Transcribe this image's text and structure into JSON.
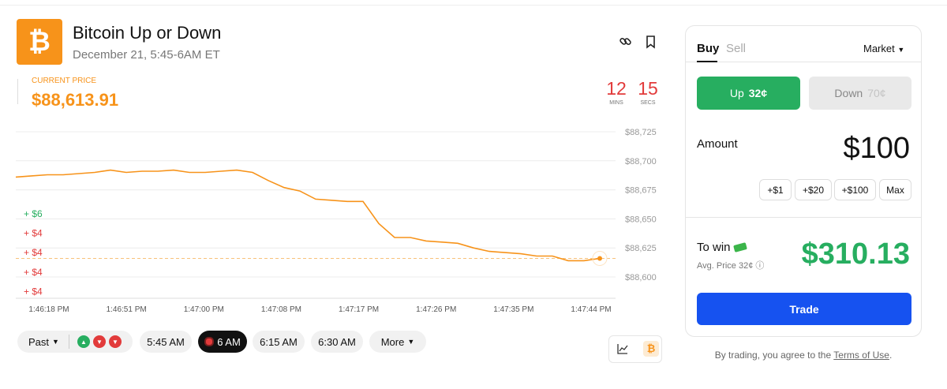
{
  "header": {
    "title": "Bitcoin Up or Down",
    "subtitle": "December 21, 5:45-6AM ET",
    "logo": "₿"
  },
  "price": {
    "label": "CURRENT PRICE",
    "value": "$88,613.91"
  },
  "timer": {
    "minutes": "12",
    "minutes_label": "MINS",
    "seconds": "15",
    "seconds_label": "SECS"
  },
  "chart_data": {
    "type": "line",
    "color": "#f7931a",
    "grid": true,
    "ylim": [
      88600,
      88725
    ],
    "yticks": [
      {
        "value": 88600,
        "label": "$88,600"
      },
      {
        "value": 88625,
        "label": "$88,625"
      },
      {
        "value": 88650,
        "label": "$88,650"
      },
      {
        "value": 88675,
        "label": "$88,675"
      },
      {
        "value": 88700,
        "label": "$88,700"
      },
      {
        "value": 88725,
        "label": "$88,725"
      }
    ],
    "x_tick_labels": [
      "1:46:18 PM",
      "1:46:51 PM",
      "1:47:00 PM",
      "1:47:08 PM",
      "1:47:17 PM",
      "1:47:26 PM",
      "1:47:35 PM",
      "1:47:44 PM"
    ],
    "reference_line": 88616,
    "values": [
      88686,
      88687,
      88688,
      88688,
      88689,
      88690,
      88692,
      88690,
      88691,
      88691,
      88692,
      88690,
      88690,
      88691,
      88692,
      88690,
      88683,
      88677,
      88674,
      88667,
      88666,
      88665,
      88665,
      88646,
      88634,
      88634,
      88631,
      88630,
      88629,
      88625,
      88622,
      88621,
      88620,
      88618,
      88618,
      88614,
      88614,
      88616
    ],
    "trade_markers": [
      {
        "label": "+ $6",
        "color": "#27ae60"
      },
      {
        "label": "+ $4",
        "color": "#e23b3b"
      },
      {
        "label": "+ $4",
        "color": "#e23b3b"
      },
      {
        "label": "+ $4",
        "color": "#e23b3b"
      },
      {
        "label": "+ $4",
        "color": "#e23b3b"
      }
    ]
  },
  "controls": {
    "past": "Past",
    "times": [
      "5:45 AM",
      "6 AM",
      "6:15 AM",
      "6:30 AM"
    ],
    "more": "More"
  },
  "trade_panel": {
    "tabs": [
      "Buy",
      "Sell"
    ],
    "order_type": "Market",
    "up": {
      "label": "Up",
      "price": "32¢"
    },
    "down": {
      "label": "Down",
      "price": "70¢"
    },
    "amount_label": "Amount",
    "amount": "$100",
    "chips": [
      "+$1",
      "+$20",
      "+$100",
      "Max"
    ],
    "to_win_label": "To win",
    "avg_price": "Avg. Price 32¢",
    "to_win": "$310.13",
    "button": "Trade"
  },
  "footer": {
    "text": "By trading, you agree to the",
    "link": "Terms of Use",
    "end": "."
  }
}
